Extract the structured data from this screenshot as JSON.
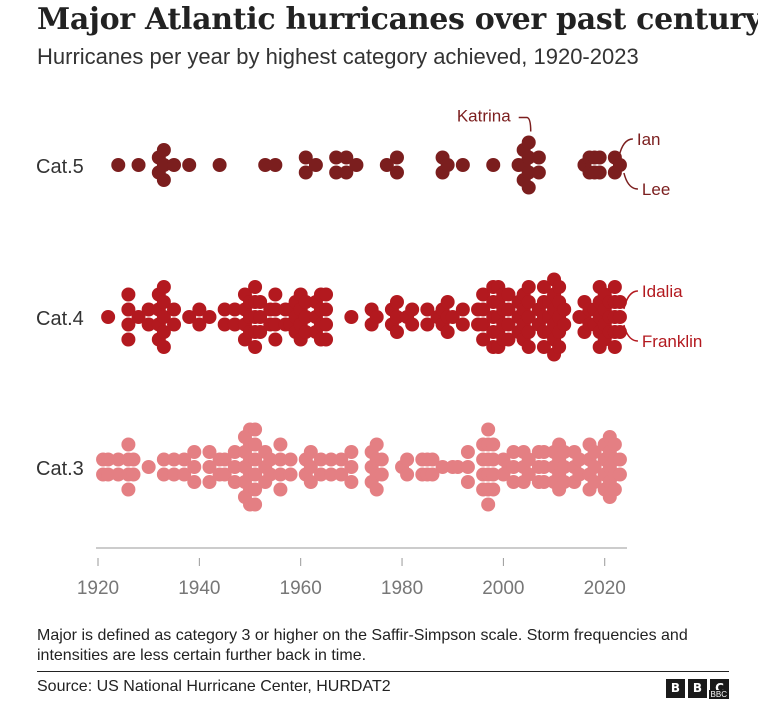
{
  "title": "Major Atlantic hurricanes over past century",
  "subtitle": "Hurricanes per year by highest category achieved, 1920-2023",
  "note": "Major is defined as category 3 or higher on the Saffir-Simpson scale. Storm frequencies and intensities are less certain further back in time.",
  "source": "Source: US National Hurricane Center, HURDAT2",
  "logo": {
    "b1": "B",
    "b2": "B",
    "b3": "C",
    "sub": "BBC"
  },
  "chart_data": {
    "type": "scatter",
    "xlim": [
      1920,
      2024
    ],
    "xticks": [
      1920,
      1940,
      1960,
      1980,
      2000,
      2020
    ],
    "grid": false,
    "colors": {
      "Cat.5": "#7b1e1e",
      "Cat.4": "#b3191f",
      "Cat.3": "#e47f83",
      "axis": "#999999",
      "label": "#444444"
    },
    "series": [
      {
        "name": "Cat.5",
        "counts": [
          [
            1924,
            1
          ],
          [
            1928,
            1
          ],
          [
            1932,
            2
          ],
          [
            1933,
            3
          ],
          [
            1935,
            1
          ],
          [
            1938,
            1
          ],
          [
            1944,
            1
          ],
          [
            1953,
            1
          ],
          [
            1955,
            1
          ],
          [
            1961,
            2
          ],
          [
            1963,
            1
          ],
          [
            1967,
            2
          ],
          [
            1969,
            2
          ],
          [
            1971,
            1
          ],
          [
            1977,
            1
          ],
          [
            1979,
            2
          ],
          [
            1988,
            2
          ],
          [
            1989,
            1
          ],
          [
            1992,
            1
          ],
          [
            1998,
            1
          ],
          [
            2003,
            1
          ],
          [
            2004,
            3
          ],
          [
            2005,
            4
          ],
          [
            2007,
            2
          ],
          [
            2016,
            1
          ],
          [
            2017,
            2
          ],
          [
            2018,
            2
          ],
          [
            2019,
            2
          ],
          [
            2022,
            2
          ],
          [
            2023,
            1
          ]
        ],
        "annotations": [
          {
            "label": "Katrina",
            "year": 2005
          },
          {
            "label": "Ian",
            "year": 2022
          },
          {
            "label": "Lee",
            "year": 2023
          }
        ]
      },
      {
        "name": "Cat.4",
        "counts": [
          [
            1922,
            1
          ],
          [
            1926,
            4
          ],
          [
            1928,
            1
          ],
          [
            1930,
            2
          ],
          [
            1932,
            4
          ],
          [
            1933,
            5
          ],
          [
            1935,
            2
          ],
          [
            1938,
            1
          ],
          [
            1940,
            2
          ],
          [
            1942,
            1
          ],
          [
            1945,
            2
          ],
          [
            1947,
            2
          ],
          [
            1949,
            4
          ],
          [
            1950,
            3
          ],
          [
            1951,
            5
          ],
          [
            1952,
            3
          ],
          [
            1954,
            2
          ],
          [
            1955,
            4
          ],
          [
            1957,
            2
          ],
          [
            1958,
            2
          ],
          [
            1959,
            3
          ],
          [
            1960,
            4
          ],
          [
            1961,
            3
          ],
          [
            1963,
            3
          ],
          [
            1964,
            4
          ],
          [
            1965,
            4
          ],
          [
            1970,
            1
          ],
          [
            1974,
            2
          ],
          [
            1975,
            1
          ],
          [
            1978,
            2
          ],
          [
            1979,
            3
          ],
          [
            1981,
            1
          ],
          [
            1982,
            2
          ],
          [
            1985,
            2
          ],
          [
            1987,
            1
          ],
          [
            1988,
            2
          ],
          [
            1989,
            3
          ],
          [
            1990,
            1
          ],
          [
            1992,
            2
          ],
          [
            1995,
            2
          ],
          [
            1996,
            4
          ],
          [
            1998,
            5
          ],
          [
            1999,
            5
          ],
          [
            2000,
            4
          ],
          [
            2001,
            4
          ],
          [
            2003,
            3
          ],
          [
            2004,
            4
          ],
          [
            2005,
            5
          ],
          [
            2007,
            2
          ],
          [
            2008,
            5
          ],
          [
            2009,
            3
          ],
          [
            2010,
            6
          ],
          [
            2011,
            5
          ],
          [
            2012,
            2
          ],
          [
            2015,
            1
          ],
          [
            2016,
            3
          ],
          [
            2017,
            2
          ],
          [
            2018,
            2
          ],
          [
            2019,
            5
          ],
          [
            2020,
            4
          ],
          [
            2021,
            3
          ],
          [
            2022,
            5
          ],
          [
            2023,
            3
          ]
        ],
        "annotations": [
          {
            "label": "Idalia",
            "year": 2023
          },
          {
            "label": "Franklin",
            "year": 2023
          }
        ]
      },
      {
        "name": "Cat.3",
        "counts": [
          [
            1921,
            2
          ],
          [
            1922,
            2
          ],
          [
            1924,
            2
          ],
          [
            1926,
            4
          ],
          [
            1927,
            2
          ],
          [
            1930,
            1
          ],
          [
            1933,
            2
          ],
          [
            1935,
            2
          ],
          [
            1937,
            2
          ],
          [
            1939,
            3
          ],
          [
            1942,
            3
          ],
          [
            1944,
            2
          ],
          [
            1945,
            2
          ],
          [
            1947,
            3
          ],
          [
            1949,
            5
          ],
          [
            1950,
            6
          ],
          [
            1951,
            6
          ],
          [
            1953,
            3
          ],
          [
            1954,
            2
          ],
          [
            1956,
            4
          ],
          [
            1958,
            2
          ],
          [
            1961,
            2
          ],
          [
            1962,
            3
          ],
          [
            1964,
            2
          ],
          [
            1966,
            2
          ],
          [
            1968,
            2
          ],
          [
            1970,
            3
          ],
          [
            1974,
            3
          ],
          [
            1975,
            4
          ],
          [
            1976,
            2
          ],
          [
            1980,
            1
          ],
          [
            1981,
            2
          ],
          [
            1984,
            2
          ],
          [
            1985,
            2
          ],
          [
            1986,
            2
          ],
          [
            1988,
            1
          ],
          [
            1990,
            1
          ],
          [
            1991,
            1
          ],
          [
            1993,
            3
          ],
          [
            1996,
            4
          ],
          [
            1997,
            6
          ],
          [
            1998,
            4
          ],
          [
            2000,
            2
          ],
          [
            2001,
            1
          ],
          [
            2002,
            3
          ],
          [
            2004,
            3
          ],
          [
            2005,
            2
          ],
          [
            2007,
            3
          ],
          [
            2008,
            3
          ],
          [
            2010,
            3
          ],
          [
            2011,
            4
          ],
          [
            2012,
            3
          ],
          [
            2014,
            3
          ],
          [
            2015,
            2
          ],
          [
            2017,
            4
          ],
          [
            2018,
            3
          ],
          [
            2020,
            4
          ],
          [
            2021,
            5
          ],
          [
            2022,
            4
          ],
          [
            2023,
            2
          ]
        ],
        "annotations": []
      }
    ]
  }
}
